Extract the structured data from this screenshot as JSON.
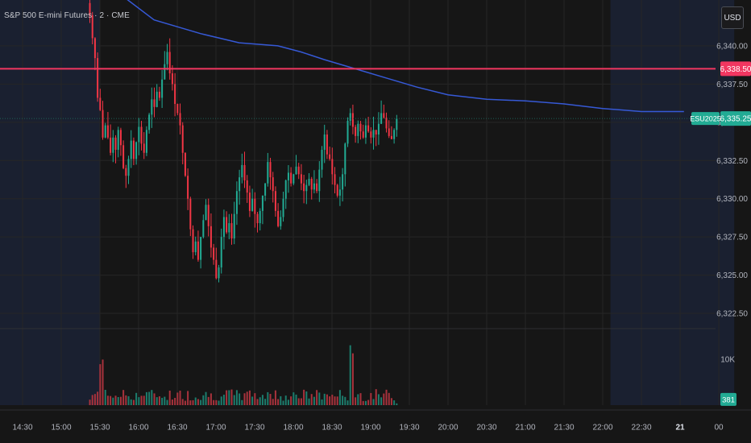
{
  "header": {
    "symbol_title": "S&P 500 E-mini Futures · 2 · CME",
    "currency_button": "USD"
  },
  "colors": {
    "background": "#161616",
    "session_shade": "#1a2030",
    "grid": "#262626",
    "up": "#22ab94",
    "down": "#f23645",
    "up_volume": "#1c7d6d",
    "down_volume": "#a8323c",
    "ma_line": "#3659d6",
    "horizontal_line": "#f23660",
    "last_price_line": "#1e5f55",
    "axis_text": "#b2b5be"
  },
  "chart_data": {
    "type": "candlestick",
    "price_axis": {
      "ylim": [
        6321.5,
        6343.0
      ],
      "ticks": [
        6340.0,
        6337.5,
        6335.0,
        6332.5,
        6330.0,
        6327.5,
        6325.0,
        6322.5
      ],
      "tick_labels": [
        "6,340.00",
        "6,337.50",
        "6,335.00",
        "6,332.50",
        "6,330.00",
        "6,327.50",
        "6,325.00",
        "6,322.50"
      ]
    },
    "volume_axis": {
      "ylim": [
        0,
        16000
      ],
      "ticks": [
        10000
      ],
      "tick_labels": [
        "10K"
      ]
    },
    "time_axis": {
      "tick_labels": [
        "14:30",
        "15:00",
        "15:30",
        "16:00",
        "16:30",
        "17:00",
        "17:30",
        "18:00",
        "18:30",
        "19:00",
        "19:30",
        "20:00",
        "20:30",
        "21:00",
        "21:30",
        "22:00",
        "22:30",
        "21",
        "00"
      ],
      "tick_hours": [
        14.5,
        15.0,
        15.5,
        16.0,
        16.5,
        17.0,
        17.5,
        18.0,
        18.5,
        19.0,
        19.5,
        20.0,
        20.5,
        21.0,
        21.5,
        22.0,
        22.5,
        23.0,
        23.5
      ],
      "bold_labels": [
        "21"
      ]
    },
    "shaded_sessions": [
      {
        "from_hour": 13.9,
        "to_hour": 15.5
      },
      {
        "from_hour": 22.1,
        "to_hour": 23.7
      }
    ],
    "bar_interval_minutes": 2,
    "first_bar_hour": 15.37,
    "closes": [
      6342.0,
      6340.5,
      6339.2,
      6336.6,
      6335.8,
      6334.0,
      6334.8,
      6334.0,
      6333.0,
      6334.0,
      6333.2,
      6334.5,
      6333.5,
      6332.0,
      6331.5,
      6332.6,
      6333.8,
      6332.6,
      6333.7,
      6334.7,
      6333.6,
      6333.0,
      6334.5,
      6335.5,
      6336.5,
      6336.0,
      6337.0,
      6336.6,
      6337.8,
      6338.8,
      6339.6,
      6338.2,
      6337.5,
      6336.2,
      6335.6,
      6334.8,
      6333.0,
      6331.5,
      6330.0,
      6328.0,
      6326.5,
      6327.2,
      6326.0,
      6327.5,
      6328.6,
      6329.6,
      6328.2,
      6326.8,
      6326.0,
      6324.8,
      6325.5,
      6327.5,
      6328.8,
      6327.8,
      6328.4,
      6327.4,
      6329.0,
      6330.5,
      6331.4,
      6332.2,
      6331.2,
      6330.4,
      6329.2,
      6330.0,
      6329.0,
      6328.4,
      6329.2,
      6330.2,
      6331.0,
      6332.4,
      6331.4,
      6330.5,
      6329.2,
      6328.2,
      6328.8,
      6330.0,
      6331.2,
      6331.7,
      6331.0,
      6331.6,
      6332.1,
      6331.6,
      6331.0,
      6330.5,
      6330.9,
      6331.3,
      6330.6,
      6331.0,
      6330.5,
      6331.9,
      6333.2,
      6334.2,
      6332.9,
      6332.6,
      6331.6,
      6330.9,
      6330.2,
      6330.6,
      6331.6,
      6333.6,
      6335.1,
      6335.6,
      6334.7,
      6334.1,
      6334.9,
      6334.4,
      6334.0,
      6334.8,
      6334.4,
      6334.0,
      6334.5,
      6334.2,
      6334.9,
      6335.6,
      6335.3,
      6334.6,
      6334.1,
      6333.9,
      6334.5,
      6335.25
    ],
    "vwap_line": [
      [
        15.6,
        6344.0
      ],
      [
        16.2,
        6341.7
      ],
      [
        16.8,
        6340.8
      ],
      [
        17.3,
        6340.2
      ],
      [
        17.8,
        6340.0
      ],
      [
        18.1,
        6339.6
      ],
      [
        18.4,
        6339.1
      ],
      [
        18.8,
        6338.5
      ],
      [
        19.2,
        6337.9
      ],
      [
        19.6,
        6337.3
      ],
      [
        20.0,
        6336.8
      ],
      [
        20.5,
        6336.5
      ],
      [
        21.0,
        6336.4
      ],
      [
        21.5,
        6336.2
      ],
      [
        22.0,
        6335.9
      ],
      [
        22.5,
        6335.7
      ],
      [
        23.05,
        6335.7
      ]
    ],
    "horizontal_line": {
      "price": 6338.5,
      "label": "6,338.50"
    },
    "last_price": {
      "price": 6335.25,
      "label": "6,335.25",
      "contract": "ESU2025"
    },
    "last_volume": {
      "value": 381,
      "label": "381"
    }
  }
}
